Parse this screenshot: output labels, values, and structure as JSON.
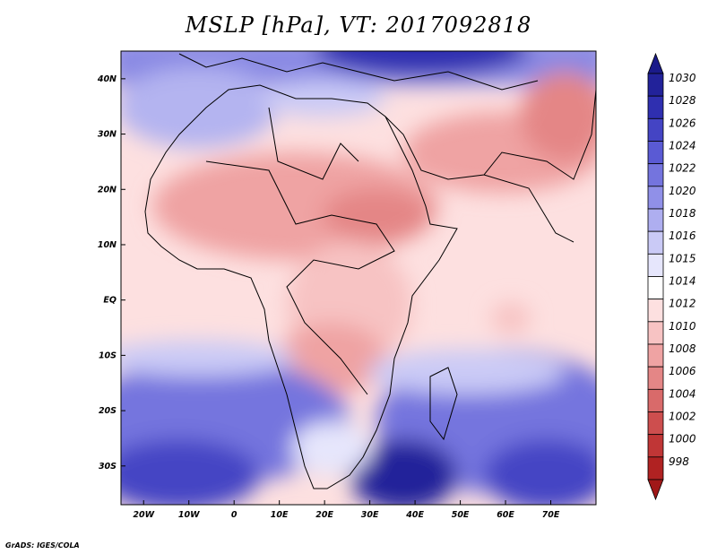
{
  "title": "MSLP [hPa], VT: 2017092818",
  "credit": "GrADS: IGES/COLA",
  "map": {
    "lon_range": [
      -25,
      80
    ],
    "lat_range": [
      -37,
      45
    ],
    "x_ticks": [
      "20W",
      "10W",
      "0",
      "10E",
      "20E",
      "30E",
      "40E",
      "50E",
      "60E",
      "70E"
    ],
    "y_ticks": [
      "40N",
      "30N",
      "20N",
      "10N",
      "EQ",
      "10S",
      "20S",
      "30S"
    ]
  },
  "colorbar": {
    "levels": [
      "1030",
      "1028",
      "1026",
      "1024",
      "1022",
      "1020",
      "1018",
      "1016",
      "1015",
      "1014",
      "1012",
      "1010",
      "1008",
      "1006",
      "1004",
      "1002",
      "1000",
      "998"
    ],
    "colors": [
      "#22229a",
      "#2f2fb0",
      "#4444c4",
      "#5a5ad4",
      "#7474de",
      "#9090e8",
      "#aeaef0",
      "#cacaf6",
      "#e6e6fc",
      "#ffffff",
      "#fde0e0",
      "#f7c3c3",
      "#efa3a3",
      "#e48686",
      "#d96a6a",
      "#cd4e4e",
      "#c03636",
      "#b02222"
    ],
    "top_arrow_color": "#1a1a8a",
    "bottom_arrow_color": "#a01818"
  }
}
